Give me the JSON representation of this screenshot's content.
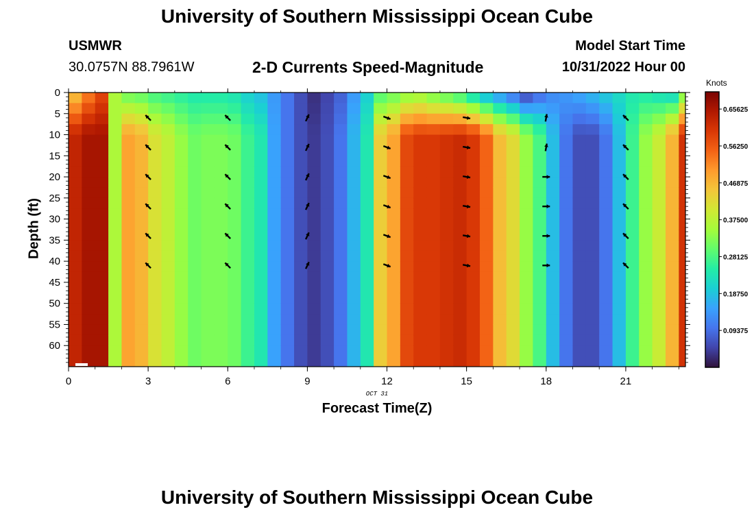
{
  "title": "University of Southern Mississippi Ocean Cube",
  "title_bottom": "University of Southern Mississippi Ocean Cube",
  "station": "USMWR",
  "coords": "30.0757N  88.7961W",
  "subtitle": "2-D Currents Speed-Magnitude",
  "model_start_label": "Model Start Time",
  "model_start_value": "10/31/2022 Hour 00",
  "date_label": "OCT 31",
  "colorbar_unit": "Knots",
  "colors": {
    "palette": [
      "#30123b",
      "#4145ab",
      "#4675ed",
      "#39a2fc",
      "#1bcfd4",
      "#24eca6",
      "#61fc6c",
      "#a4fc3b",
      "#d1e834",
      "#f3c63a",
      "#fe9b2d",
      "#f36315",
      "#d93806",
      "#b11901",
      "#7a0403"
    ]
  },
  "chart_data": {
    "type": "heatmap",
    "xlabel": "Forecast Time(Z)",
    "ylabel": "Depth (ft)",
    "xlim": [
      0,
      23.25
    ],
    "ylim": [
      0,
      65
    ],
    "x_ticks": [
      0,
      3,
      6,
      9,
      12,
      15,
      18,
      21
    ],
    "x_tick_labels": [
      "0",
      "3",
      "6",
      "9",
      "12",
      "15",
      "18",
      "21"
    ],
    "y_ticks": [
      0,
      5,
      10,
      15,
      20,
      25,
      30,
      35,
      40,
      45,
      50,
      55,
      60
    ],
    "y_tick_labels": [
      "0",
      "5",
      "10",
      "15",
      "20",
      "25",
      "30",
      "35",
      "40",
      "45",
      "50",
      "55",
      "60"
    ],
    "colorbar": {
      "min": 0.0,
      "max": 0.7,
      "ticks": [
        0.09375,
        0.1875,
        0.28125,
        0.375,
        0.46875,
        0.5625,
        0.65625
      ],
      "tick_labels": [
        "0.09375",
        "0.18750",
        "0.28125",
        "0.37500",
        "0.46875",
        "0.56250",
        "0.65625"
      ]
    },
    "time_hours": [
      0,
      0.5,
      1,
      1.5,
      2,
      2.5,
      3,
      3.5,
      4,
      4.5,
      5,
      5.5,
      6,
      6.5,
      7,
      7.5,
      8,
      8.5,
      9,
      9.5,
      10,
      10.5,
      11,
      11.5,
      12,
      12.5,
      13,
      13.5,
      14,
      14.5,
      15,
      15.5,
      16,
      16.5,
      17,
      17.5,
      18,
      18.5,
      19,
      19.5,
      20,
      20.5,
      21,
      21.5,
      22,
      22.5,
      23
    ],
    "speed_deep_knots": [
      0.63,
      0.66,
      0.66,
      0.36,
      0.49,
      0.47,
      0.41,
      0.38,
      0.34,
      0.31,
      0.32,
      0.32,
      0.31,
      0.27,
      0.24,
      0.15,
      0.1,
      0.06,
      0.04,
      0.06,
      0.1,
      0.17,
      0.24,
      0.44,
      0.49,
      0.58,
      0.6,
      0.6,
      0.61,
      0.62,
      0.6,
      0.55,
      0.46,
      0.42,
      0.34,
      0.28,
      0.18,
      0.1,
      0.06,
      0.06,
      0.1,
      0.18,
      0.27,
      0.34,
      0.39,
      0.47,
      0.61
    ],
    "speed_surface_knots": [
      0.45,
      0.52,
      0.58,
      0.36,
      0.3,
      0.29,
      0.27,
      0.26,
      0.25,
      0.24,
      0.24,
      0.24,
      0.23,
      0.2,
      0.18,
      0.14,
      0.1,
      0.06,
      0.03,
      0.05,
      0.08,
      0.14,
      0.2,
      0.28,
      0.3,
      0.32,
      0.33,
      0.3,
      0.28,
      0.25,
      0.2,
      0.15,
      0.12,
      0.08,
      0.04,
      0.08,
      0.12,
      0.14,
      0.16,
      0.18,
      0.2,
      0.22,
      0.24,
      0.24,
      0.22,
      0.2,
      0.3
    ],
    "surface_layer_depth_ft": 10,
    "vectors": {
      "times": [
        3,
        6,
        9,
        12,
        15,
        18,
        21
      ],
      "depths": [
        6,
        13,
        20,
        27,
        34,
        41
      ],
      "directions_deg": [
        315,
        315,
        25,
        110,
        100,
        10,
        315
      ],
      "deep_direction_18h_deg": 90
    }
  }
}
